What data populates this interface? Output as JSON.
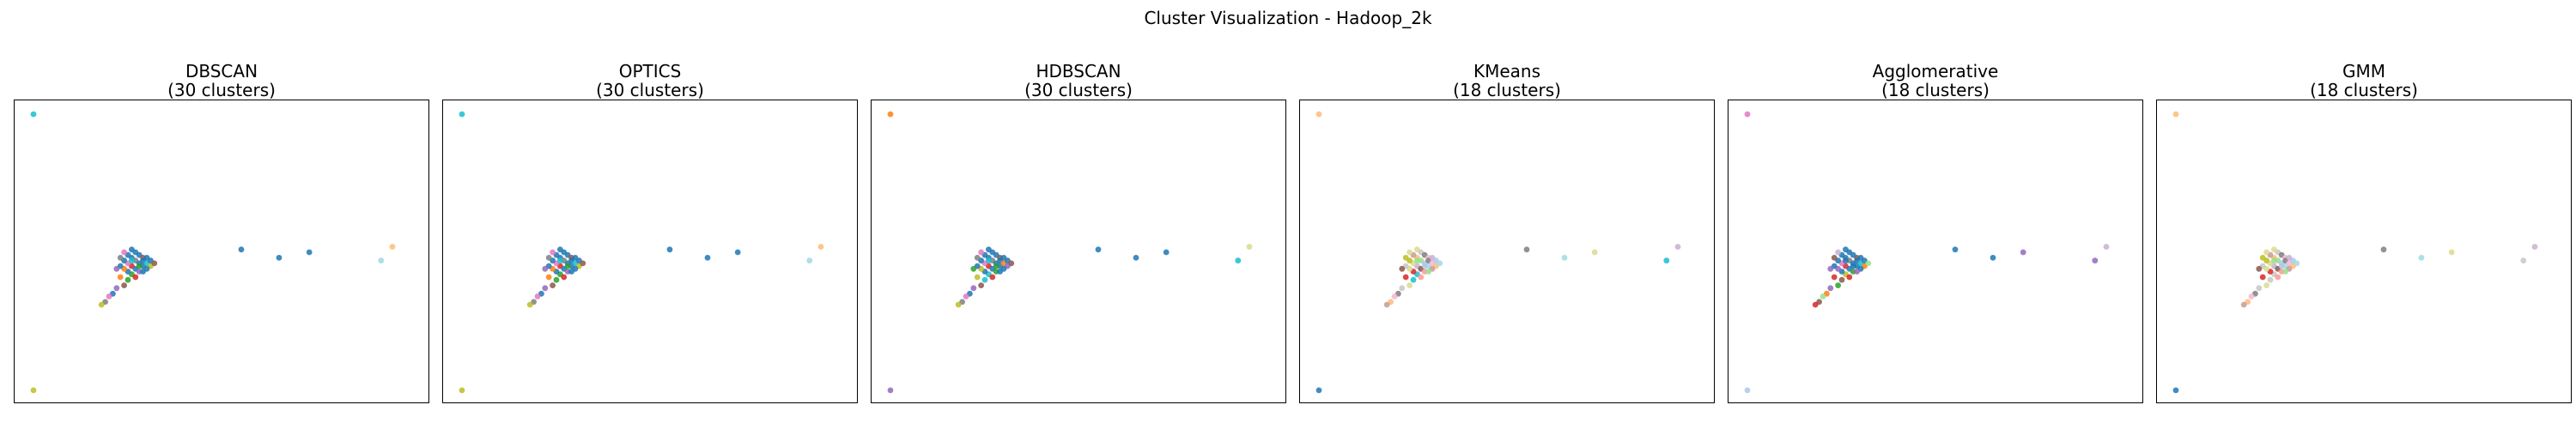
{
  "chart_data": {
    "suptitle": "Cluster Visualization - Hadoop_2k",
    "panels": [
      {
        "title": "DBSCAN",
        "subtitle": "(30 clusters)"
      },
      {
        "title": "OPTICS",
        "subtitle": "(30 clusters)"
      },
      {
        "title": "HDBSCAN",
        "subtitle": "(30 clusters)"
      },
      {
        "title": "KMeans",
        "subtitle": "(18 clusters)"
      },
      {
        "title": "Agglomerative",
        "subtitle": "(18 clusters)"
      },
      {
        "title": "GMM",
        "subtitle": "(18 clusters)"
      }
    ],
    "type": "scatter",
    "grid": false,
    "axes_ticks": false,
    "xlim": [
      -0.05,
      1.05
    ],
    "ylim": [
      -0.05,
      1.05
    ],
    "points": [
      [
        0.0,
        1.0
      ],
      [
        0.0,
        0.0
      ],
      [
        0.26,
        0.51
      ],
      [
        0.27,
        0.5
      ],
      [
        0.28,
        0.49
      ],
      [
        0.29,
        0.48
      ],
      [
        0.26,
        0.48
      ],
      [
        0.25,
        0.49
      ],
      [
        0.27,
        0.47
      ],
      [
        0.28,
        0.46
      ],
      [
        0.29,
        0.45
      ],
      [
        0.26,
        0.45
      ],
      [
        0.25,
        0.46
      ],
      [
        0.24,
        0.47
      ],
      [
        0.27,
        0.44
      ],
      [
        0.28,
        0.43
      ],
      [
        0.26,
        0.42
      ],
      [
        0.25,
        0.43
      ],
      [
        0.24,
        0.44
      ],
      [
        0.23,
        0.45
      ],
      [
        0.29,
        0.47
      ],
      [
        0.3,
        0.46
      ],
      [
        0.31,
        0.45
      ],
      [
        0.3,
        0.44
      ],
      [
        0.29,
        0.43
      ],
      [
        0.31,
        0.47
      ],
      [
        0.32,
        0.46
      ],
      [
        0.3,
        0.48
      ],
      [
        0.24,
        0.5
      ],
      [
        0.23,
        0.48
      ],
      [
        0.22,
        0.44
      ],
      [
        0.27,
        0.41
      ],
      [
        0.25,
        0.4
      ],
      [
        0.23,
        0.41
      ],
      [
        0.24,
        0.38
      ],
      [
        0.22,
        0.37
      ],
      [
        0.21,
        0.35
      ],
      [
        0.2,
        0.34
      ],
      [
        0.19,
        0.32
      ],
      [
        0.18,
        0.31
      ],
      [
        0.26,
        0.47
      ],
      [
        0.28,
        0.45
      ],
      [
        0.55,
        0.51
      ],
      [
        0.65,
        0.48
      ],
      [
        0.73,
        0.5
      ],
      [
        0.92,
        0.47
      ],
      [
        0.95,
        0.52
      ]
    ],
    "labels": [
      [
        0,
        1,
        2,
        2,
        2,
        3,
        2,
        2,
        4,
        2,
        2,
        5,
        6,
        2,
        2,
        7,
        8,
        2,
        9,
        2,
        2,
        10,
        11,
        2,
        12,
        2,
        13,
        2,
        14,
        15,
        16,
        17,
        18,
        19,
        20,
        21,
        22,
        23,
        24,
        25,
        26,
        27,
        2,
        2,
        2,
        28,
        29
      ],
      [
        0,
        1,
        2,
        2,
        2,
        3,
        2,
        2,
        4,
        2,
        2,
        5,
        6,
        2,
        2,
        7,
        8,
        2,
        9,
        2,
        2,
        10,
        11,
        2,
        12,
        2,
        13,
        2,
        14,
        15,
        16,
        17,
        18,
        19,
        20,
        21,
        22,
        23,
        24,
        25,
        26,
        27,
        2,
        2,
        2,
        28,
        29
      ],
      [
        0,
        1,
        2,
        2,
        2,
        3,
        2,
        2,
        4,
        2,
        2,
        5,
        6,
        2,
        2,
        7,
        8,
        2,
        9,
        2,
        2,
        10,
        11,
        2,
        12,
        2,
        13,
        2,
        14,
        15,
        16,
        17,
        18,
        19,
        20,
        21,
        22,
        23,
        24,
        25,
        26,
        27,
        2,
        2,
        2,
        28,
        29
      ],
      [
        0,
        1,
        2,
        3,
        4,
        5,
        6,
        7,
        8,
        9,
        10,
        11,
        12,
        13,
        14,
        15,
        16,
        17,
        2,
        3,
        4,
        5,
        6,
        7,
        8,
        9,
        10,
        11,
        12,
        13,
        14,
        15,
        16,
        17,
        2,
        3,
        4,
        5,
        6,
        7,
        8,
        9,
        4,
        10,
        12,
        16,
        11
      ],
      [
        0,
        1,
        2,
        2,
        2,
        3,
        2,
        2,
        4,
        2,
        2,
        5,
        6,
        2,
        2,
        7,
        8,
        2,
        9,
        2,
        2,
        10,
        11,
        2,
        12,
        2,
        13,
        2,
        14,
        15,
        16,
        17,
        3,
        5,
        7,
        9,
        11,
        13,
        15,
        17,
        2,
        2,
        2,
        2,
        12,
        16,
        14
      ],
      [
        0,
        1,
        2,
        3,
        4,
        5,
        6,
        7,
        8,
        9,
        10,
        11,
        12,
        13,
        14,
        15,
        16,
        17,
        2,
        3,
        4,
        5,
        6,
        7,
        8,
        9,
        10,
        11,
        12,
        13,
        14,
        15,
        16,
        17,
        2,
        3,
        4,
        5,
        6,
        7,
        8,
        9,
        4,
        10,
        12,
        16,
        11
      ]
    ],
    "palettes": [
      [
        "#17becf",
        "#bcbd22",
        "#1f77b4",
        "#8c564b",
        "#7f7f7f",
        "#d62728",
        "#e377c2",
        "#9467bd",
        "#2ca02c",
        "#ff7f0e",
        "#17becf",
        "#bcbd22",
        "#1f77b4",
        "#8c564b",
        "#e377c2",
        "#7f7f7f",
        "#9467bd",
        "#d62728",
        "#2ca02c",
        "#ff7f0e",
        "#8c564b",
        "#9467bd",
        "#1f77b4",
        "#e377c2",
        "#7f7f7f",
        "#bcbd22",
        "#17becf",
        "#2ca02c",
        "#9edae5",
        "#ffbb78"
      ],
      [
        "#17becf",
        "#bcbd22",
        "#1f77b4",
        "#8c564b",
        "#7f7f7f",
        "#d62728",
        "#e377c2",
        "#9467bd",
        "#2ca02c",
        "#ff7f0e",
        "#17becf",
        "#bcbd22",
        "#1f77b4",
        "#8c564b",
        "#e377c2",
        "#7f7f7f",
        "#9467bd",
        "#d62728",
        "#2ca02c",
        "#ff7f0e",
        "#8c564b",
        "#9467bd",
        "#1f77b4",
        "#e377c2",
        "#7f7f7f",
        "#bcbd22",
        "#17becf",
        "#2ca02c",
        "#9edae5",
        "#ffbb78"
      ],
      [
        "#ff7f0e",
        "#9467bd",
        "#1f77b4",
        "#8c564b",
        "#7f7f7f",
        "#d62728",
        "#e377c2",
        "#2ca02c",
        "#17becf",
        "#bcbd22",
        "#ff7f0e",
        "#9467bd",
        "#1f77b4",
        "#8c564b",
        "#e377c2",
        "#7f7f7f",
        "#2ca02c",
        "#d62728",
        "#17becf",
        "#bcbd22",
        "#8c564b",
        "#9467bd",
        "#1f77b4",
        "#e377c2",
        "#7f7f7f",
        "#bcbd22",
        "#17becf",
        "#2ca02c",
        "#17becf",
        "#dbdb8d"
      ],
      [
        "#ffbb78",
        "#1f77b4",
        "#dbdb8d",
        "#c7c7c7",
        "#7f7f7f",
        "#f7b6d2",
        "#ffbb78",
        "#c49c94",
        "#98df8a",
        "#aec7e8",
        "#9edae5",
        "#c5b0d5",
        "#dbdb8d",
        "#bcbd22",
        "#8c564b",
        "#ff9896",
        "#17becf",
        "#d62728"
      ],
      [
        "#e377c2",
        "#aec7e8",
        "#1f77b4",
        "#8c564b",
        "#7f7f7f",
        "#d62728",
        "#e377c2",
        "#2ca02c",
        "#bcbd22",
        "#9467bd",
        "#17becf",
        "#ff7f0e",
        "#9467bd",
        "#98df8a",
        "#c5b0d5",
        "#8c564b",
        "#9467bd",
        "#d62728"
      ],
      [
        "#ffbb78",
        "#1f77b4",
        "#dbdb8d",
        "#c7c7c7",
        "#7f7f7f",
        "#f7b6d2",
        "#ffbb78",
        "#c49c94",
        "#98df8a",
        "#aec7e8",
        "#9edae5",
        "#c5b0d5",
        "#dbdb8d",
        "#bcbd22",
        "#8c564b",
        "#ff9896",
        "#c7c7c7",
        "#d62728"
      ]
    ]
  }
}
